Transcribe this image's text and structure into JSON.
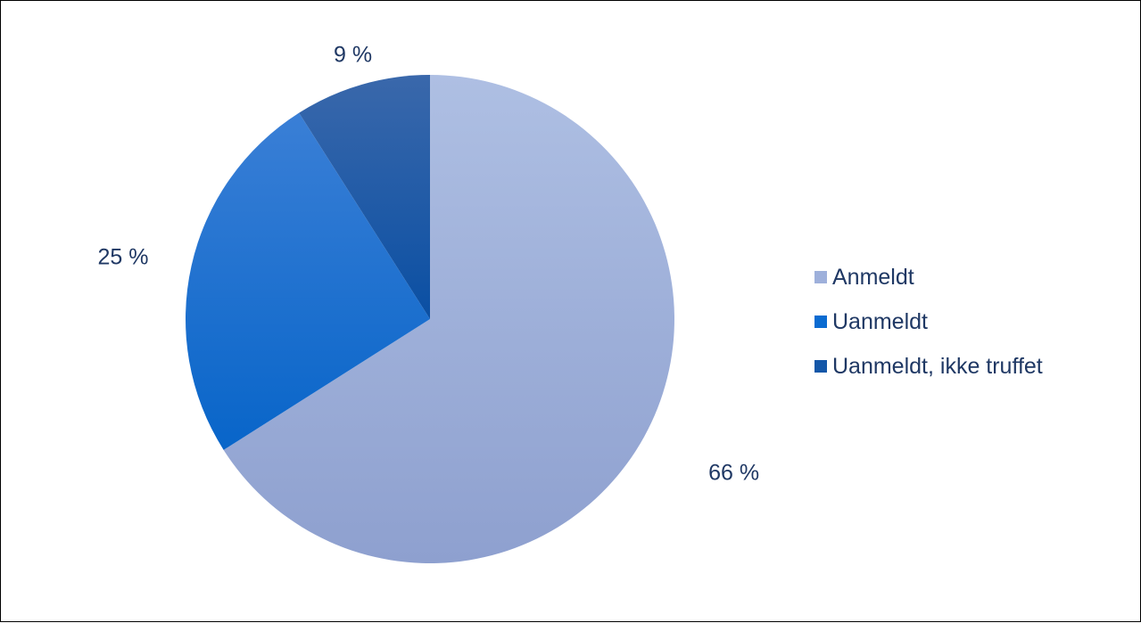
{
  "chart_data": {
    "type": "pie",
    "categories": [
      "Anmeldt",
      "Uanmeldt",
      "Uanmeldt, ikke truffet"
    ],
    "values": [
      66,
      25,
      9
    ],
    "data_labels": [
      "66 %",
      "25 %",
      "9 %"
    ],
    "colors": [
      "#9eb0db",
      "#0a6bd1",
      "#1457a8"
    ],
    "legend": {
      "position": "right",
      "entries": [
        "Anmeldt",
        "Uanmeldt",
        "Uanmeldt, ikke truffet"
      ]
    }
  }
}
